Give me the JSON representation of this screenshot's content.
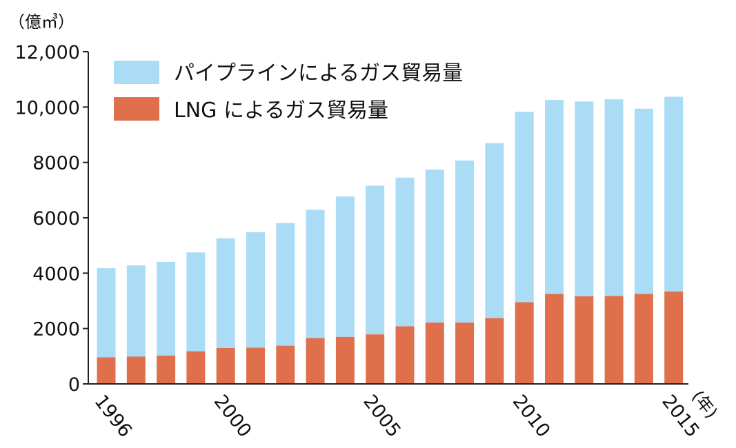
{
  "chart_data": {
    "type": "bar",
    "stacked": true,
    "y_unit_label": "（億㎥）",
    "x_unit_label": "(年)",
    "ylim": [
      0,
      12000
    ],
    "y_ticks": [
      {
        "value": 0,
        "label": "0"
      },
      {
        "value": 2000,
        "label": "2000"
      },
      {
        "value": 4000,
        "label": "4000"
      },
      {
        "value": 6000,
        "label": "6000"
      },
      {
        "value": 8000,
        "label": "8000"
      },
      {
        "value": 10000,
        "label": "10,000"
      },
      {
        "value": 12000,
        "label": "12,000"
      }
    ],
    "x_tick_labels": [
      {
        "year": 1996,
        "label": "1996"
      },
      {
        "year": 2000,
        "label": "2000"
      },
      {
        "year": 2005,
        "label": "2005"
      },
      {
        "year": 2010,
        "label": "2010"
      },
      {
        "year": 2015,
        "label": "2015"
      }
    ],
    "categories": [
      1996,
      1997,
      1998,
      1999,
      2000,
      2001,
      2002,
      2003,
      2004,
      2005,
      2006,
      2007,
      2008,
      2009,
      2010,
      2011,
      2012,
      2013,
      2014,
      2015
    ],
    "series": [
      {
        "name": "LNG によるガス貿易量",
        "color": "#e0704b",
        "values": [
          960,
          990,
          1020,
          1180,
          1300,
          1310,
          1380,
          1660,
          1700,
          1790,
          2080,
          2220,
          2220,
          2380,
          2950,
          3250,
          3170,
          3180,
          3250,
          3340
        ]
      },
      {
        "name": "パイプラインによるガス貿易量",
        "color": "#aadcf6",
        "values": [
          3220,
          3290,
          3390,
          3570,
          3960,
          4170,
          4430,
          4630,
          5070,
          5370,
          5370,
          5520,
          5850,
          6320,
          6880,
          7010,
          7030,
          7100,
          6690,
          7030
        ]
      }
    ],
    "legend": {
      "position": "top-left",
      "order": [
        "パイプラインによるガス貿易量",
        "LNG によるガス貿易量"
      ]
    },
    "grid": false
  }
}
